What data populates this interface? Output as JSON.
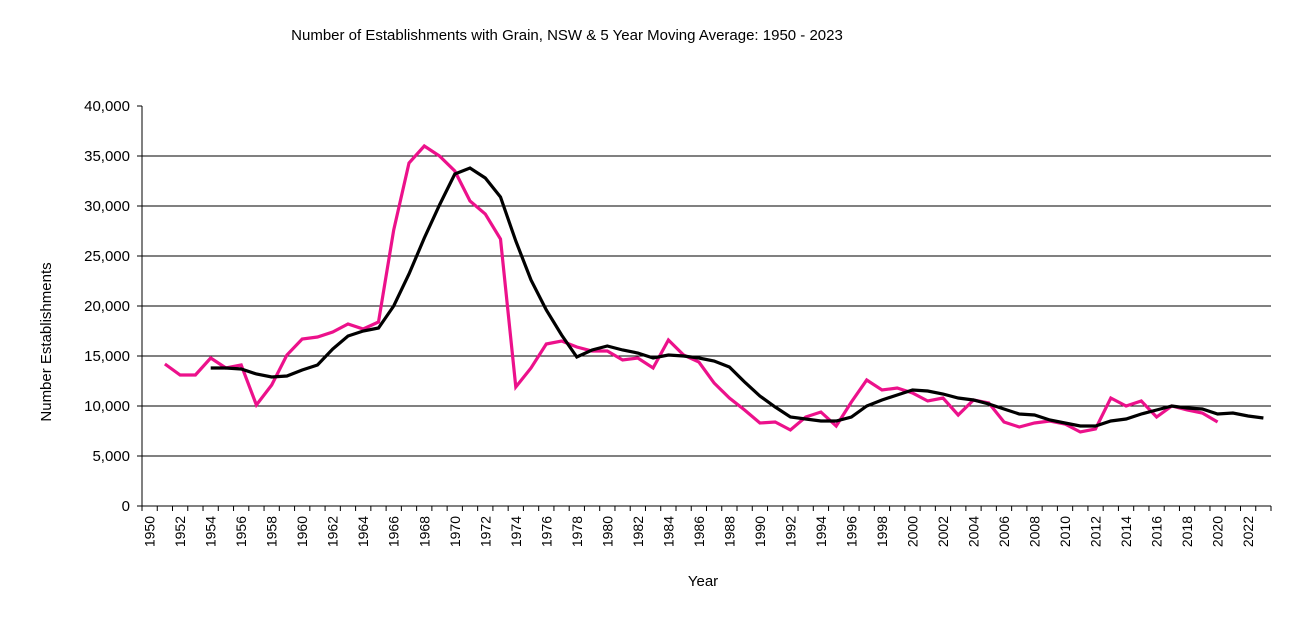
{
  "chart_data": {
    "type": "line",
    "title": "Number of Establishments with Grain, NSW & 5 Year Moving Average: 1950 - 2023",
    "xlabel": "Year",
    "ylabel": "Number Establishments",
    "ylim": [
      0,
      40000
    ],
    "yticks": [
      "0",
      "5,000",
      "10,000",
      "15,000",
      "20,000",
      "25,000",
      "30,000",
      "35,000",
      "40,000"
    ],
    "ytick_values": [
      0,
      5000,
      10000,
      15000,
      20000,
      25000,
      30000,
      35000,
      40000
    ],
    "x": [
      1950,
      1951,
      1952,
      1953,
      1954,
      1955,
      1956,
      1957,
      1958,
      1959,
      1960,
      1961,
      1962,
      1963,
      1964,
      1965,
      1966,
      1967,
      1968,
      1969,
      1970,
      1971,
      1972,
      1973,
      1974,
      1975,
      1976,
      1977,
      1978,
      1979,
      1980,
      1981,
      1982,
      1983,
      1984,
      1985,
      1986,
      1987,
      1988,
      1989,
      1990,
      1991,
      1992,
      1993,
      1994,
      1995,
      1996,
      1997,
      1998,
      1999,
      2000,
      2001,
      2002,
      2003,
      2004,
      2005,
      2006,
      2007,
      2008,
      2009,
      2010,
      2011,
      2012,
      2013,
      2014,
      2015,
      2016,
      2017,
      2018,
      2019,
      2020,
      2021,
      2022,
      2023
    ],
    "xtick_labels": [
      "1950",
      "1952",
      "1954",
      "1956",
      "1958",
      "1960",
      "1962",
      "1964",
      "1966",
      "1968",
      "1970",
      "1972",
      "1974",
      "1976",
      "1978",
      "1980",
      "1982",
      "1984",
      "1986",
      "1988",
      "1990",
      "1992",
      "1994",
      "1996",
      "1998",
      "2000",
      "2002",
      "2004",
      "2006",
      "2008",
      "2010",
      "2012",
      "2014",
      "2016",
      "2018",
      "2020",
      "2022"
    ],
    "grid": true,
    "legend": "none",
    "series": [
      {
        "name": "Number of Establishments with Grain",
        "color": "#ec118b",
        "values": [
          null,
          14200,
          13100,
          13100,
          14800,
          13800,
          14100,
          10100,
          12100,
          15100,
          16700,
          16900,
          17400,
          18200,
          17700,
          18400,
          27600,
          34300,
          36000,
          35000,
          33500,
          30500,
          29200,
          26700,
          11900,
          13800,
          16200,
          16500,
          15900,
          15500,
          15500,
          14600,
          14800,
          13800,
          16600,
          15100,
          14400,
          12300,
          10800,
          9600,
          8300,
          8400,
          7600,
          8900,
          9400,
          8000,
          10400,
          12600,
          11600,
          11800,
          11300,
          10500,
          10800,
          9100,
          10600,
          10300,
          8400,
          7900,
          8300,
          8500,
          8200,
          7400,
          7700,
          10800,
          10000,
          10500,
          8900,
          10000,
          9600,
          9300,
          8400,
          null,
          null,
          null
        ]
      },
      {
        "name": "5 Year Moving Average",
        "color": "#000000",
        "values": [
          null,
          null,
          null,
          null,
          13800,
          13800,
          13700,
          13200,
          12900,
          13000,
          13600,
          14100,
          15700,
          17000,
          17500,
          17800,
          20000,
          23200,
          26800,
          30100,
          33200,
          33800,
          32800,
          30900,
          26500,
          22600,
          19600,
          17100,
          14900,
          15600,
          16000,
          15600,
          15300,
          14800,
          15100,
          15000,
          14800,
          14500,
          13900,
          12400,
          11000,
          9900,
          8900,
          8700,
          8500,
          8500,
          8900,
          10000,
          10600,
          11100,
          11600,
          11500,
          11200,
          10800,
          10600,
          10200,
          9700,
          9200,
          9100,
          8600,
          8300,
          8000,
          8000,
          8500,
          8700,
          9200,
          9600,
          10000,
          9800,
          9700,
          9200,
          9300,
          9000,
          8800
        ]
      }
    ]
  }
}
